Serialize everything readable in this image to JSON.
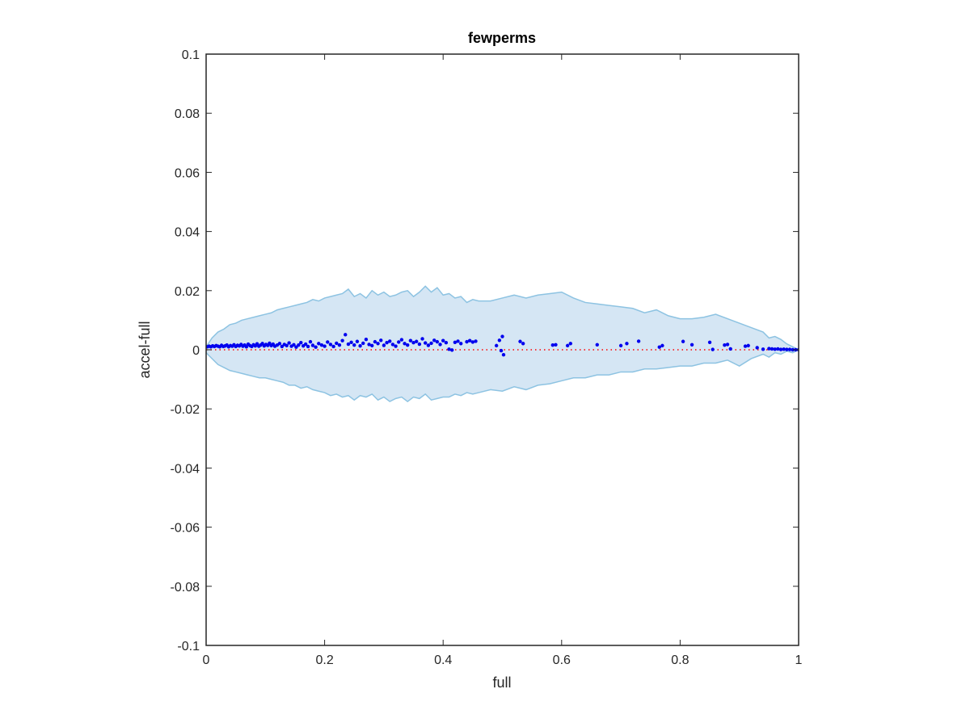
{
  "chart_data": {
    "type": "scatter",
    "title": "fewperms",
    "xlabel": "full",
    "ylabel": "accel-full",
    "xlim": [
      0,
      1
    ],
    "ylim": [
      -0.1,
      0.1
    ],
    "xticks": [
      0,
      0.2,
      0.4,
      0.6,
      0.8,
      1
    ],
    "xtick_labels": [
      "0",
      "0.2",
      "0.4",
      "0.6",
      "0.8",
      "1"
    ],
    "yticks": [
      -0.1,
      -0.08,
      -0.06,
      -0.04,
      -0.02,
      0,
      0.02,
      0.04,
      0.06,
      0.08,
      0.1
    ],
    "ytick_labels": [
      "-0.1",
      "-0.08",
      "-0.06",
      "-0.04",
      "-0.02",
      "0",
      "0.02",
      "0.04",
      "0.06",
      "0.08",
      "0.1"
    ],
    "grid": false,
    "reference_line": {
      "y": 0,
      "style": "dotted",
      "color": "#ff0000"
    },
    "band": {
      "color": "#d5e6f4",
      "edge_color": "#8dc3e2",
      "upper": [
        [
          0,
          0.001
        ],
        [
          0.01,
          0.004
        ],
        [
          0.02,
          0.006
        ],
        [
          0.03,
          0.007
        ],
        [
          0.04,
          0.0085
        ],
        [
          0.05,
          0.009
        ],
        [
          0.06,
          0.01
        ],
        [
          0.07,
          0.0105
        ],
        [
          0.08,
          0.011
        ],
        [
          0.09,
          0.0115
        ],
        [
          0.1,
          0.012
        ],
        [
          0.11,
          0.0125
        ],
        [
          0.12,
          0.0135
        ],
        [
          0.13,
          0.014
        ],
        [
          0.14,
          0.0145
        ],
        [
          0.15,
          0.015
        ],
        [
          0.16,
          0.0155
        ],
        [
          0.17,
          0.016
        ],
        [
          0.18,
          0.017
        ],
        [
          0.19,
          0.0165
        ],
        [
          0.2,
          0.0175
        ],
        [
          0.21,
          0.018
        ],
        [
          0.22,
          0.0185
        ],
        [
          0.23,
          0.019
        ],
        [
          0.24,
          0.0205
        ],
        [
          0.25,
          0.018
        ],
        [
          0.26,
          0.019
        ],
        [
          0.27,
          0.0175
        ],
        [
          0.28,
          0.02
        ],
        [
          0.29,
          0.0185
        ],
        [
          0.3,
          0.0195
        ],
        [
          0.31,
          0.018
        ],
        [
          0.32,
          0.0185
        ],
        [
          0.33,
          0.0195
        ],
        [
          0.34,
          0.02
        ],
        [
          0.35,
          0.018
        ],
        [
          0.36,
          0.0195
        ],
        [
          0.37,
          0.0215
        ],
        [
          0.38,
          0.0195
        ],
        [
          0.39,
          0.021
        ],
        [
          0.4,
          0.0185
        ],
        [
          0.41,
          0.019
        ],
        [
          0.42,
          0.0175
        ],
        [
          0.43,
          0.018
        ],
        [
          0.44,
          0.016
        ],
        [
          0.45,
          0.017
        ],
        [
          0.46,
          0.0165
        ],
        [
          0.48,
          0.0165
        ],
        [
          0.5,
          0.0175
        ],
        [
          0.52,
          0.0185
        ],
        [
          0.54,
          0.0175
        ],
        [
          0.56,
          0.0185
        ],
        [
          0.58,
          0.019
        ],
        [
          0.6,
          0.0195
        ],
        [
          0.62,
          0.0175
        ],
        [
          0.64,
          0.016
        ],
        [
          0.66,
          0.0155
        ],
        [
          0.68,
          0.015
        ],
        [
          0.7,
          0.0145
        ],
        [
          0.72,
          0.014
        ],
        [
          0.74,
          0.0125
        ],
        [
          0.76,
          0.0135
        ],
        [
          0.78,
          0.0115
        ],
        [
          0.8,
          0.0105
        ],
        [
          0.82,
          0.0105
        ],
        [
          0.84,
          0.011
        ],
        [
          0.86,
          0.012
        ],
        [
          0.88,
          0.0105
        ],
        [
          0.9,
          0.009
        ],
        [
          0.92,
          0.0075
        ],
        [
          0.94,
          0.006
        ],
        [
          0.95,
          0.004
        ],
        [
          0.96,
          0.0045
        ],
        [
          0.97,
          0.0035
        ],
        [
          0.98,
          0.002
        ],
        [
          0.99,
          0.001
        ],
        [
          1.0,
          0.0
        ]
      ],
      "lower": [
        [
          0,
          -0.001
        ],
        [
          0.01,
          -0.003
        ],
        [
          0.02,
          -0.005
        ],
        [
          0.03,
          -0.006
        ],
        [
          0.04,
          -0.007
        ],
        [
          0.05,
          -0.0075
        ],
        [
          0.06,
          -0.008
        ],
        [
          0.07,
          -0.0085
        ],
        [
          0.08,
          -0.009
        ],
        [
          0.09,
          -0.0095
        ],
        [
          0.1,
          -0.0095
        ],
        [
          0.11,
          -0.01
        ],
        [
          0.12,
          -0.0105
        ],
        [
          0.13,
          -0.011
        ],
        [
          0.14,
          -0.012
        ],
        [
          0.15,
          -0.012
        ],
        [
          0.16,
          -0.013
        ],
        [
          0.17,
          -0.0125
        ],
        [
          0.18,
          -0.0135
        ],
        [
          0.19,
          -0.014
        ],
        [
          0.2,
          -0.0145
        ],
        [
          0.21,
          -0.0155
        ],
        [
          0.22,
          -0.015
        ],
        [
          0.23,
          -0.016
        ],
        [
          0.24,
          -0.0155
        ],
        [
          0.25,
          -0.017
        ],
        [
          0.26,
          -0.0155
        ],
        [
          0.27,
          -0.016
        ],
        [
          0.28,
          -0.015
        ],
        [
          0.29,
          -0.017
        ],
        [
          0.3,
          -0.016
        ],
        [
          0.31,
          -0.0175
        ],
        [
          0.32,
          -0.0165
        ],
        [
          0.33,
          -0.016
        ],
        [
          0.34,
          -0.0175
        ],
        [
          0.35,
          -0.016
        ],
        [
          0.36,
          -0.0165
        ],
        [
          0.37,
          -0.015
        ],
        [
          0.38,
          -0.017
        ],
        [
          0.39,
          -0.0165
        ],
        [
          0.4,
          -0.016
        ],
        [
          0.41,
          -0.016
        ],
        [
          0.42,
          -0.015
        ],
        [
          0.43,
          -0.0155
        ],
        [
          0.44,
          -0.0145
        ],
        [
          0.45,
          -0.015
        ],
        [
          0.46,
          -0.0145
        ],
        [
          0.48,
          -0.0135
        ],
        [
          0.5,
          -0.014
        ],
        [
          0.52,
          -0.0125
        ],
        [
          0.54,
          -0.0135
        ],
        [
          0.56,
          -0.012
        ],
        [
          0.58,
          -0.0115
        ],
        [
          0.6,
          -0.0105
        ],
        [
          0.62,
          -0.0095
        ],
        [
          0.64,
          -0.0095
        ],
        [
          0.66,
          -0.0085
        ],
        [
          0.68,
          -0.0085
        ],
        [
          0.7,
          -0.0075
        ],
        [
          0.72,
          -0.0075
        ],
        [
          0.74,
          -0.0065
        ],
        [
          0.76,
          -0.0065
        ],
        [
          0.78,
          -0.006
        ],
        [
          0.8,
          -0.0055
        ],
        [
          0.82,
          -0.0055
        ],
        [
          0.84,
          -0.0045
        ],
        [
          0.86,
          -0.0045
        ],
        [
          0.88,
          -0.0035
        ],
        [
          0.9,
          -0.0055
        ],
        [
          0.92,
          -0.003
        ],
        [
          0.94,
          -0.0015
        ],
        [
          0.95,
          -0.0025
        ],
        [
          0.96,
          -0.001
        ],
        [
          0.97,
          -0.0015
        ],
        [
          0.98,
          -0.0005
        ],
        [
          0.99,
          -0.001
        ],
        [
          1.0,
          0.0
        ]
      ]
    },
    "series": [
      {
        "marker": "dot",
        "color": "#0000ee",
        "points": [
          [
            0.002,
            0.001
          ],
          [
            0.005,
            0.0012
          ],
          [
            0.008,
            0.001
          ],
          [
            0.011,
            0.0013
          ],
          [
            0.014,
            0.0011
          ],
          [
            0.017,
            0.0014
          ],
          [
            0.02,
            0.0012
          ],
          [
            0.023,
            0.001
          ],
          [
            0.026,
            0.0015
          ],
          [
            0.029,
            0.0011
          ],
          [
            0.032,
            0.0013
          ],
          [
            0.035,
            0.0016
          ],
          [
            0.038,
            0.001
          ],
          [
            0.041,
            0.0014
          ],
          [
            0.044,
            0.0012
          ],
          [
            0.047,
            0.0017
          ],
          [
            0.05,
            0.0011
          ],
          [
            0.053,
            0.0015
          ],
          [
            0.056,
            0.0013
          ],
          [
            0.059,
            0.0018
          ],
          [
            0.062,
            0.0012
          ],
          [
            0.065,
            0.0016
          ],
          [
            0.068,
            0.001
          ],
          [
            0.071,
            0.0019
          ],
          [
            0.074,
            0.0014
          ],
          [
            0.077,
            0.0011
          ],
          [
            0.08,
            0.0017
          ],
          [
            0.083,
            0.0013
          ],
          [
            0.086,
            0.002
          ],
          [
            0.089,
            0.0012
          ],
          [
            0.092,
            0.0016
          ],
          [
            0.095,
            0.0021
          ],
          [
            0.098,
            0.0013
          ],
          [
            0.101,
            0.0018
          ],
          [
            0.104,
            0.0015
          ],
          [
            0.107,
            0.0022
          ],
          [
            0.11,
            0.0014
          ],
          [
            0.113,
            0.0019
          ],
          [
            0.116,
            0.0012
          ],
          [
            0.12,
            0.0016
          ],
          [
            0.124,
            0.0021
          ],
          [
            0.128,
            0.0011
          ],
          [
            0.132,
            0.0018
          ],
          [
            0.136,
            0.0014
          ],
          [
            0.14,
            0.0023
          ],
          [
            0.144,
            0.0012
          ],
          [
            0.148,
            0.0017
          ],
          [
            0.152,
            0.0009
          ],
          [
            0.156,
            0.0016
          ],
          [
            0.16,
            0.0024
          ],
          [
            0.164,
            0.0013
          ],
          [
            0.168,
            0.0019
          ],
          [
            0.172,
            0.0011
          ],
          [
            0.176,
            0.0027
          ],
          [
            0.18,
            0.0015
          ],
          [
            0.185,
            0.0009
          ],
          [
            0.19,
            0.0021
          ],
          [
            0.195,
            0.0016
          ],
          [
            0.2,
            0.0012
          ],
          [
            0.205,
            0.0026
          ],
          [
            0.21,
            0.0018
          ],
          [
            0.215,
            0.0011
          ],
          [
            0.22,
            0.0022
          ],
          [
            0.225,
            0.0016
          ],
          [
            0.23,
            0.0031
          ],
          [
            0.235,
            0.0051
          ],
          [
            0.24,
            0.0019
          ],
          [
            0.245,
            0.0025
          ],
          [
            0.25,
            0.0016
          ],
          [
            0.255,
            0.0028
          ],
          [
            0.26,
            0.0013
          ],
          [
            0.265,
            0.0022
          ],
          [
            0.27,
            0.0035
          ],
          [
            0.275,
            0.0018
          ],
          [
            0.28,
            0.0014
          ],
          [
            0.285,
            0.0027
          ],
          [
            0.29,
            0.0021
          ],
          [
            0.295,
            0.0032
          ],
          [
            0.3,
            0.0015
          ],
          [
            0.305,
            0.0024
          ],
          [
            0.31,
            0.0029
          ],
          [
            0.315,
            0.0018
          ],
          [
            0.32,
            0.0012
          ],
          [
            0.325,
            0.0026
          ],
          [
            0.33,
            0.0034
          ],
          [
            0.335,
            0.0021
          ],
          [
            0.34,
            0.0016
          ],
          [
            0.345,
            0.0031
          ],
          [
            0.35,
            0.0024
          ],
          [
            0.355,
            0.0028
          ],
          [
            0.36,
            0.0019
          ],
          [
            0.365,
            0.0037
          ],
          [
            0.37,
            0.0023
          ],
          [
            0.375,
            0.0015
          ],
          [
            0.38,
            0.0022
          ],
          [
            0.385,
            0.0032
          ],
          [
            0.39,
            0.0027
          ],
          [
            0.395,
            0.0018
          ],
          [
            0.4,
            0.0031
          ],
          [
            0.405,
            0.0024
          ],
          [
            0.41,
            0.0002
          ],
          [
            0.415,
            -0.0001
          ],
          [
            0.42,
            0.0025
          ],
          [
            0.425,
            0.0029
          ],
          [
            0.43,
            0.0021
          ],
          [
            0.44,
            0.0027
          ],
          [
            0.445,
            0.0031
          ],
          [
            0.45,
            0.0026
          ],
          [
            0.455,
            0.0029
          ],
          [
            0.49,
            0.0014
          ],
          [
            0.495,
            0.0032
          ],
          [
            0.5,
            0.0045
          ],
          [
            0.498,
            -0.0003
          ],
          [
            0.502,
            -0.0017
          ],
          [
            0.53,
            0.0028
          ],
          [
            0.535,
            0.0021
          ],
          [
            0.585,
            0.0016
          ],
          [
            0.59,
            0.0017
          ],
          [
            0.61,
            0.0014
          ],
          [
            0.615,
            0.0021
          ],
          [
            0.66,
            0.0017
          ],
          [
            0.7,
            0.0014
          ],
          [
            0.71,
            0.0021
          ],
          [
            0.73,
            0.0029
          ],
          [
            0.765,
            0.0009
          ],
          [
            0.77,
            0.0014
          ],
          [
            0.805,
            0.0028
          ],
          [
            0.82,
            0.0017
          ],
          [
            0.85,
            0.0025
          ],
          [
            0.855,
            0.0001
          ],
          [
            0.875,
            0.0016
          ],
          [
            0.88,
            0.0018
          ],
          [
            0.885,
            0.0003
          ],
          [
            0.91,
            0.0012
          ],
          [
            0.915,
            0.0014
          ],
          [
            0.93,
            0.0007
          ],
          [
            0.94,
            0.0002
          ],
          [
            0.95,
            0.0004
          ],
          [
            0.955,
            0.0003
          ],
          [
            0.96,
            0.0002
          ],
          [
            0.965,
            0.0003
          ],
          [
            0.97,
            0.0001
          ],
          [
            0.975,
            0.0002
          ],
          [
            0.98,
            0.0001
          ],
          [
            0.985,
            0.0001
          ],
          [
            0.99,
            0.0
          ],
          [
            0.995,
            0.0
          ],
          [
            1.0,
            0.0
          ]
        ]
      }
    ]
  }
}
